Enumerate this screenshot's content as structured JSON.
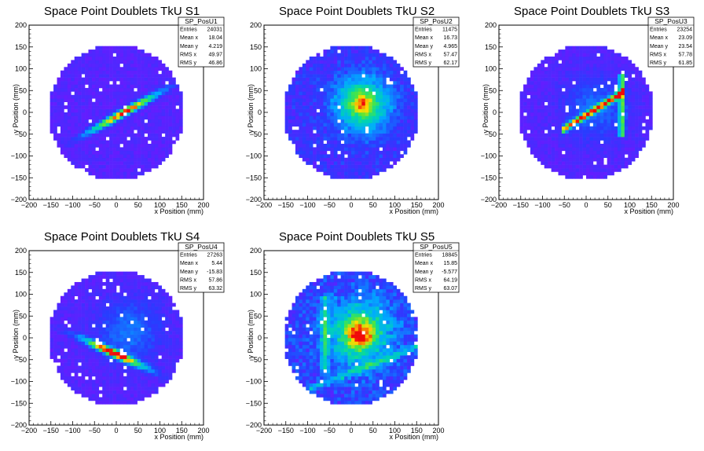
{
  "chart_data": [
    {
      "type": "heatmap",
      "title": "Space Point Doublets TkU S1",
      "xlabel": "x Position (mm)",
      "ylabel": "y Position (mm)",
      "xlim": [
        -200,
        200
      ],
      "ylim": [
        -200,
        200
      ],
      "ticks": [
        "−200",
        "−150",
        "−100",
        "−50",
        "0",
        "50",
        "100",
        "150",
        "200"
      ],
      "pattern": "diagonal band through centre, low background",
      "stats": {
        "name": "SP_PosU1",
        "rows": [
          [
            "Entries",
            "24031"
          ],
          [
            "Mean x",
            "18.04"
          ],
          [
            "Mean y",
            "4.219"
          ],
          [
            "RMS x",
            "49.97"
          ],
          [
            "RMS y",
            "46.86"
          ]
        ]
      }
    },
    {
      "type": "heatmap",
      "title": "Space Point Doublets TkU S2",
      "xlabel": "x Position (mm)",
      "ylabel": "y Position (mm)",
      "xlim": [
        -200,
        200
      ],
      "ylim": [
        -200,
        200
      ],
      "ticks": [
        "−200",
        "−150",
        "−100",
        "−50",
        "0",
        "50",
        "100",
        "150",
        "200"
      ],
      "pattern": "broad central blob",
      "stats": {
        "name": "SP_PosU2",
        "rows": [
          [
            "Entries",
            "11475"
          ],
          [
            "Mean x",
            "16.73"
          ],
          [
            "Mean y",
            "4.965"
          ],
          [
            "RMS x",
            "57.47"
          ],
          [
            "RMS y",
            "62.17"
          ]
        ]
      }
    },
    {
      "type": "heatmap",
      "title": "Space Point Doublets TkU S3",
      "xlabel": "x Position (mm)",
      "ylabel": "y Position (mm)",
      "xlim": [
        -200,
        200
      ],
      "ylim": [
        -200,
        200
      ],
      "ticks": [
        "−200",
        "−150",
        "−100",
        "−50",
        "0",
        "50",
        "100",
        "150",
        "200"
      ],
      "pattern": "diagonal line plus vertical line near x=80",
      "stats": {
        "name": "SP_PosU3",
        "rows": [
          [
            "Entries",
            "23254"
          ],
          [
            "Mean x",
            "23.09"
          ],
          [
            "Mean y",
            "23.54"
          ],
          [
            "RMS x",
            "57.78"
          ],
          [
            "RMS y",
            "61.85"
          ]
        ]
      }
    },
    {
      "type": "heatmap",
      "title": "Space Point Doublets TkU S4",
      "xlabel": "x Position (mm)",
      "ylabel": "y Position (mm)",
      "xlim": [
        -200,
        200
      ],
      "ylim": [
        -200,
        200
      ],
      "ticks": [
        "−200",
        "−150",
        "−100",
        "−50",
        "0",
        "50",
        "100",
        "150",
        "200"
      ],
      "pattern": "descending diagonal band below centre",
      "stats": {
        "name": "SP_PosU4",
        "rows": [
          [
            "Entries",
            "27263"
          ],
          [
            "Mean x",
            "5.44"
          ],
          [
            "Mean y",
            "-15.83"
          ],
          [
            "RMS x",
            "57.86"
          ],
          [
            "RMS y",
            "63.32"
          ]
        ]
      }
    },
    {
      "type": "heatmap",
      "title": "Space Point Doublets TkU S5",
      "xlabel": "x Position (mm)",
      "ylabel": "y Position (mm)",
      "xlim": [
        -200,
        200
      ],
      "ylim": [
        -200,
        200
      ],
      "ticks": [
        "−200",
        "−150",
        "−100",
        "−50",
        "0",
        "50",
        "100",
        "150",
        "200"
      ],
      "pattern": "bright central region with streaks",
      "stats": {
        "name": "SP_PosU5",
        "rows": [
          [
            "Entries",
            "18845"
          ],
          [
            "Mean x",
            "15.85"
          ],
          [
            "Mean y",
            "-5.577"
          ],
          [
            "RMS x",
            "64.19"
          ],
          [
            "RMS y",
            "63.07"
          ]
        ]
      }
    }
  ]
}
